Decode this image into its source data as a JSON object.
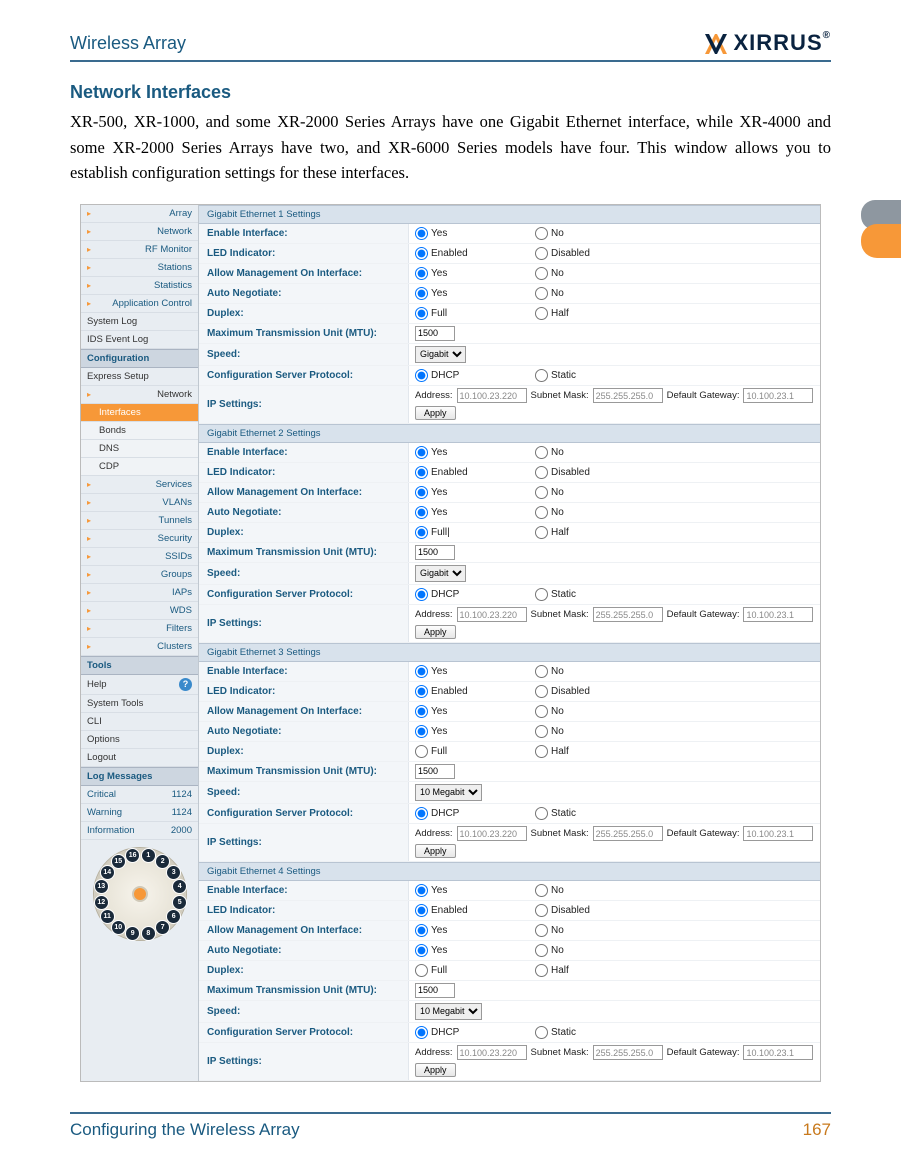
{
  "header": {
    "product": "Wireless Array",
    "logo_text": "XIRRUS"
  },
  "section_title": "Network Interfaces",
  "body_text": "XR-500, XR-1000, and some XR-2000 Series Arrays have one Gigabit Ethernet interface, while XR-4000 and some XR-2000 Series Arrays have two, and XR-6000 Series models have four. This window allows you to establish configuration settings for these interfaces.",
  "footer": {
    "chapter": "Configuring the Wireless Array",
    "page": "167"
  },
  "sidebar": {
    "top_items": [
      "Array",
      "Network",
      "RF Monitor",
      "Stations",
      "Statistics",
      "Application Control"
    ],
    "plain_items": [
      "System Log",
      "IDS Event Log"
    ],
    "config_header": "Configuration",
    "config_items": [
      "Express Setup",
      "Network"
    ],
    "network_sub": [
      "Interfaces",
      "Bonds",
      "DNS",
      "CDP"
    ],
    "lower_items": [
      "Services",
      "VLANs",
      "Tunnels",
      "Security",
      "SSIDs",
      "Groups",
      "IAPs",
      "WDS",
      "Filters",
      "Clusters"
    ],
    "tools_header": "Tools",
    "tools_items": [
      "Help",
      "System Tools",
      "CLI",
      "Options",
      "Logout"
    ],
    "log_header": "Log Messages",
    "log_rows": [
      {
        "label": "Critical",
        "count": "1124"
      },
      {
        "label": "Warning",
        "count": "1124"
      },
      {
        "label": "Information",
        "count": "2000"
      }
    ],
    "dial_nodes": 16
  },
  "labels": {
    "enable": "Enable Interface:",
    "led": "LED Indicator:",
    "mgmt": "Allow Management On Interface:",
    "auto": "Auto Negotiate:",
    "duplex": "Duplex:",
    "mtu": "Maximum Transmission Unit (MTU):",
    "speed": "Speed:",
    "proto": "Configuration Server Protocol:",
    "ip": "IP Settings:",
    "yes": "Yes",
    "no": "No",
    "enabled": "Enabled",
    "disabled": "Disabled",
    "full": "Full",
    "half": "Half",
    "dhcp": "DHCP",
    "static": "Static",
    "address": "Address:",
    "subnet": "Subnet Mask:",
    "gateway": "Default Gateway:",
    "apply": "Apply"
  },
  "panels": [
    {
      "title": "Gigabit Ethernet 1 Settings",
      "mtu": "1500",
      "speed_options": [
        "Gigabit"
      ],
      "speed_selected": "Gigabit",
      "addr": "10.100.23.220",
      "mask": "255.255.255.0",
      "gw": "10.100.23.1",
      "full_checked": true
    },
    {
      "title": "Gigabit Ethernet 2 Settings",
      "mtu": "1500",
      "speed_options": [
        "Gigabit"
      ],
      "speed_selected": "Gigabit",
      "addr": "10.100.23.220",
      "mask": "255.255.255.0",
      "gw": "10.100.23.1",
      "full_text": "Full|",
      "full_checked": true
    },
    {
      "title": "Gigabit Ethernet 3 Settings",
      "mtu": "1500",
      "speed_options": [
        "10 Megabit"
      ],
      "speed_selected": "10 Megabit",
      "addr": "10.100.23.220",
      "mask": "255.255.255.0",
      "gw": "10.100.23.1",
      "full_checked": false
    },
    {
      "title": "Gigabit Ethernet 4 Settings",
      "mtu": "1500",
      "speed_options": [
        "10 Megabit"
      ],
      "speed_selected": "10 Megabit",
      "addr": "10.100.23.220",
      "mask": "255.255.255.0",
      "gw": "10.100.23.1",
      "full_checked": false
    }
  ]
}
